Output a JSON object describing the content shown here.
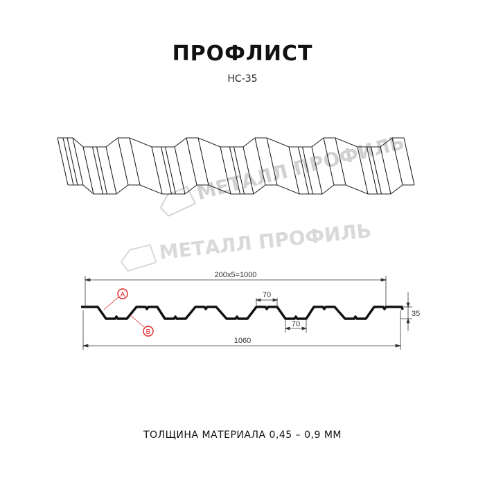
{
  "header": {
    "title": "ПРОФЛИСТ",
    "model": "НС-35"
  },
  "watermark": {
    "text": "МЕТАЛЛ ПРОФИЛЬ",
    "color": "#c8c8c8"
  },
  "profile": {
    "dimensions": {
      "pitch_total": "200x5=1000",
      "overall_width": "1060",
      "top_flange": "70",
      "bottom_flange": "70",
      "height": "35"
    },
    "callouts": {
      "a": "A",
      "b": "B",
      "color": "#e02020"
    }
  },
  "footer": {
    "thickness": "ТОЛЩИНА МАТЕРИАЛА 0,45 – 0,9 ММ"
  }
}
